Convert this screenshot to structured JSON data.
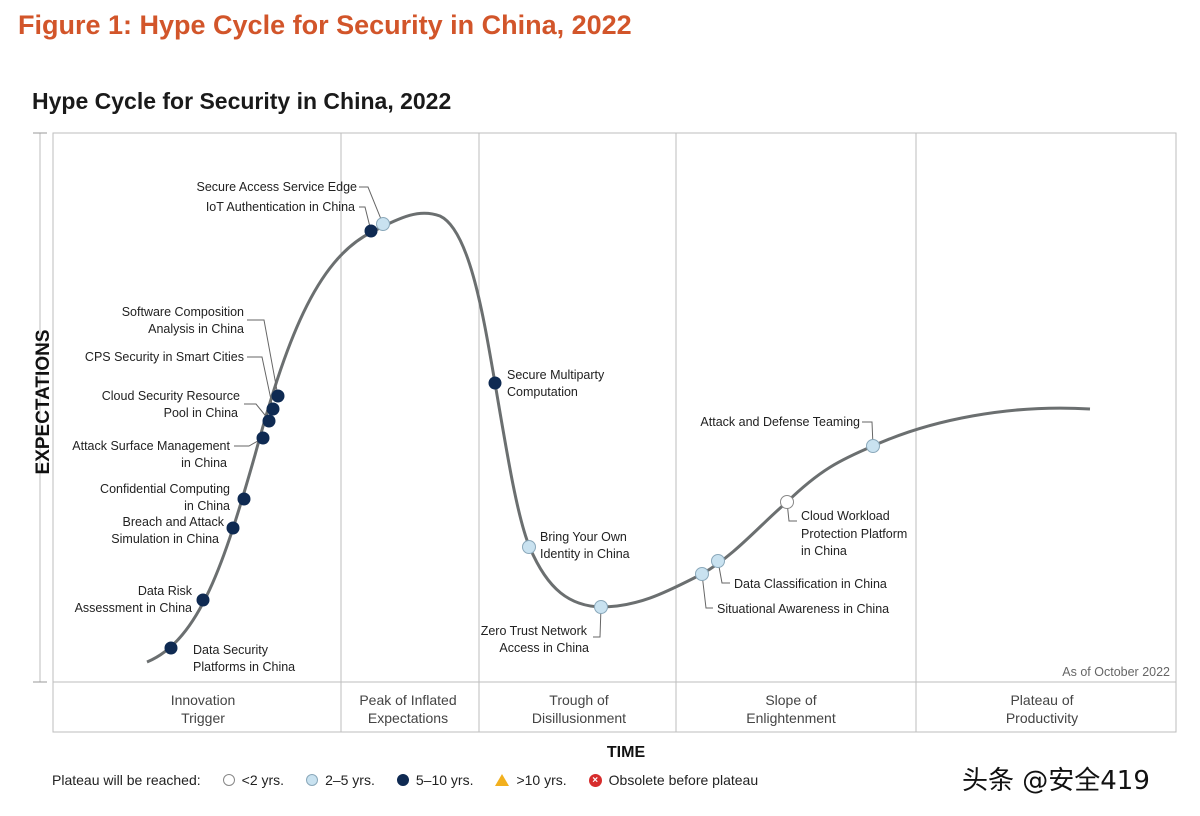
{
  "figure_title": "Figure 1: Hype Cycle for Security in China, 2022",
  "chart_title": "Hype Cycle for Security in China, 2022",
  "y_axis_label": "EXPECTATIONS",
  "x_axis_label": "TIME",
  "as_of": "As of October 2022",
  "colors": {
    "title": "#d2552a",
    "under_2": "#ffffff",
    "two_to_five": "#c9e2f0",
    "five_to_ten": "#0f2a52",
    "over_10": "#f2b01e",
    "obsolete": "#d72c2c",
    "curve": "#6b6f70"
  },
  "phases": [
    {
      "line1": "Innovation",
      "line2": "Trigger"
    },
    {
      "line1": "Peak of Inflated",
      "line2": "Expectations"
    },
    {
      "line1": "Trough of",
      "line2": "Disillusionment"
    },
    {
      "line1": "Slope of",
      "line2": "Enlightenment"
    },
    {
      "line1": "Plateau of",
      "line2": "Productivity"
    }
  ],
  "chart_data": {
    "type": "hype_cycle",
    "technologies": [
      {
        "name": "Data Security Platforms in China",
        "phase": "Innovation Trigger",
        "plateau": "5-10 yrs."
      },
      {
        "name": "Data Risk Assessment in China",
        "phase": "Innovation Trigger",
        "plateau": "5-10 yrs."
      },
      {
        "name": "Breach and Attack Simulation in China",
        "phase": "Innovation Trigger",
        "plateau": "5-10 yrs."
      },
      {
        "name": "Confidential Computing in China",
        "phase": "Innovation Trigger",
        "plateau": "5-10 yrs."
      },
      {
        "name": "Attack Surface Management in China",
        "phase": "Innovation Trigger",
        "plateau": "5-10 yrs."
      },
      {
        "name": "Cloud Security Resource Pool in China",
        "phase": "Innovation Trigger",
        "plateau": "5-10 yrs."
      },
      {
        "name": "CPS Security in Smart Cities",
        "phase": "Innovation Trigger",
        "plateau": "5-10 yrs."
      },
      {
        "name": "Software Composition Analysis in China",
        "phase": "Innovation Trigger",
        "plateau": "5-10 yrs."
      },
      {
        "name": "IoT Authentication in China",
        "phase": "Peak of Inflated Expectations",
        "plateau": "5-10 yrs."
      },
      {
        "name": "Secure Access Service Edge",
        "phase": "Peak of Inflated Expectations",
        "plateau": "2-5 yrs."
      },
      {
        "name": "Secure Multiparty Computation",
        "phase": "Trough of Disillusionment",
        "plateau": "5-10 yrs."
      },
      {
        "name": "Bring Your Own Identity in China",
        "phase": "Trough of Disillusionment",
        "plateau": "2-5 yrs."
      },
      {
        "name": "Zero Trust Network Access in China",
        "phase": "Trough of Disillusionment",
        "plateau": "2-5 yrs."
      },
      {
        "name": "Situational Awareness in China",
        "phase": "Slope of Enlightenment",
        "plateau": "2-5 yrs."
      },
      {
        "name": "Data Classification in China",
        "phase": "Slope of Enlightenment",
        "plateau": "2-5 yrs."
      },
      {
        "name": "Cloud Workload Protection Platform in China",
        "phase": "Slope of Enlightenment",
        "plateau": "<2 yrs."
      },
      {
        "name": "Attack and Defense Teaming",
        "phase": "Slope of Enlightenment",
        "plateau": "2-5 yrs."
      }
    ]
  },
  "labels": {
    "dsp": [
      "Data Security",
      "Platforms in China"
    ],
    "dra": [
      "Data Risk",
      "Assessment in China"
    ],
    "bas": [
      "Breach and Attack",
      "Simulation in China"
    ],
    "cc": [
      "Confidential Computing",
      "in China"
    ],
    "asm": [
      "Attack Surface Management",
      "in China"
    ],
    "csrp": [
      "Cloud Security Resource",
      "Pool in China"
    ],
    "cps": [
      "CPS Security in Smart Cities"
    ],
    "sca": [
      "Software Composition",
      "Analysis in China"
    ],
    "sase": [
      "Secure Access Service Edge"
    ],
    "iot": [
      "IoT Authentication in China"
    ],
    "smc": [
      "Secure Multiparty",
      "Computation"
    ],
    "byoi": [
      "Bring Your Own",
      "Identity in China"
    ],
    "ztna": [
      "Zero Trust Network",
      "Access in China"
    ],
    "dc": [
      "Data Classification in China"
    ],
    "sa": [
      "Situational Awareness in China"
    ],
    "cwpp": [
      "Cloud Workload",
      "Protection Platform",
      "in China"
    ],
    "adt": [
      "Attack and Defense Teaming"
    ]
  },
  "legend": {
    "title": "Plateau will be reached:",
    "items": [
      "<2 yrs.",
      "2–5 yrs.",
      "5–10 yrs.",
      ">10 yrs.",
      "Obsolete before plateau"
    ],
    "x_symbol": "×"
  },
  "watermark": "头条 @安全419"
}
